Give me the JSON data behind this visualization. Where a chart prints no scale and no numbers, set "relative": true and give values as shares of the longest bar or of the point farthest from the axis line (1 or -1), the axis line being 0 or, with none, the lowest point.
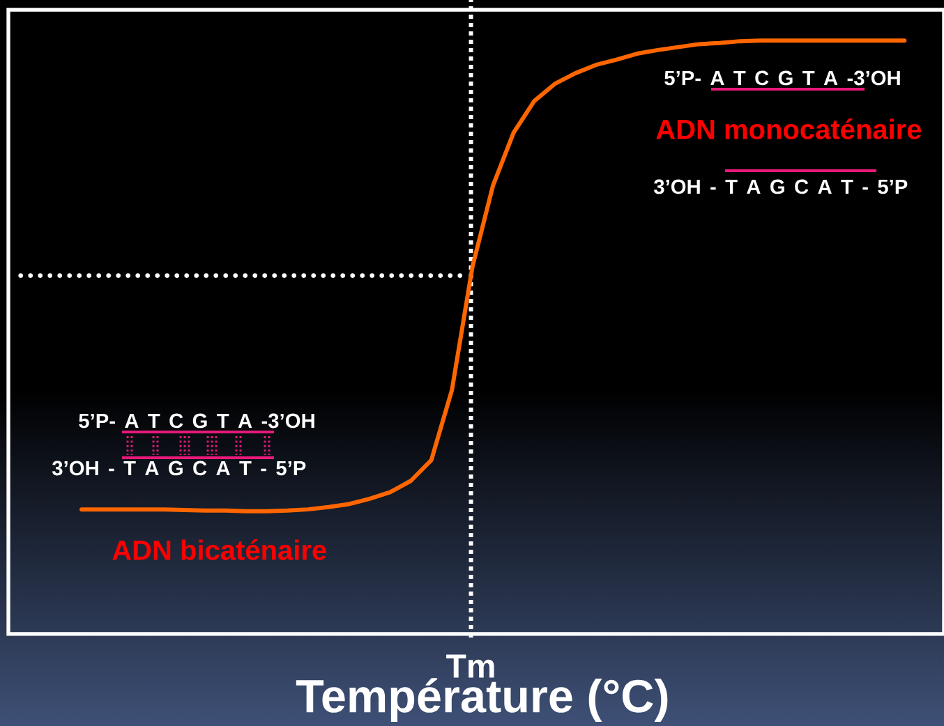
{
  "chart_data": {
    "type": "line",
    "relative": true,
    "xlabel": "Température (°C)",
    "categories": [
      null,
      null,
      null,
      null,
      null,
      null,
      null,
      null,
      null,
      null,
      null,
      null,
      null,
      null,
      null,
      null,
      null,
      null,
      null,
      null,
      null,
      null,
      null,
      null,
      null,
      null,
      null,
      null,
      null,
      null,
      null,
      null,
      null,
      null,
      null,
      null,
      null,
      null,
      null,
      null,
      null
    ],
    "series": [
      {
        "color": "#ff6600",
        "line_style": "solid",
        "values": [
          0.21,
          0.21,
          0.21,
          0.21,
          0.21,
          0.209,
          0.208,
          0.208,
          0.207,
          0.207,
          0.208,
          0.21,
          0.214,
          0.219,
          0.228,
          0.239,
          0.258,
          0.293,
          0.411,
          0.619,
          0.756,
          0.845,
          0.898,
          0.927,
          0.945,
          0.959,
          0.968,
          0.978,
          0.984,
          0.989,
          0.994,
          0.996,
          0.999,
          1.0,
          1.0,
          1.0,
          1.0,
          1.0,
          1.0,
          1.0,
          1.0
        ]
      }
    ],
    "ref_lines": [
      {
        "axis": "x",
        "label": "Tm",
        "color": "#ffffff",
        "line_style": "dotted"
      },
      {
        "axis": "y",
        "value": 0.604,
        "color": "#ffffff",
        "line_style": "dotted"
      }
    ],
    "annotations": [
      "5’P- A T C G T A -3’OH",
      "ADN monocaténaire",
      "3’OH - T A G C A T - 5’P",
      "5’P- A T C G T A -3’OH",
      "3’OH - T A G C A T - 5’P",
      "ADN bicaténaire"
    ]
  }
}
